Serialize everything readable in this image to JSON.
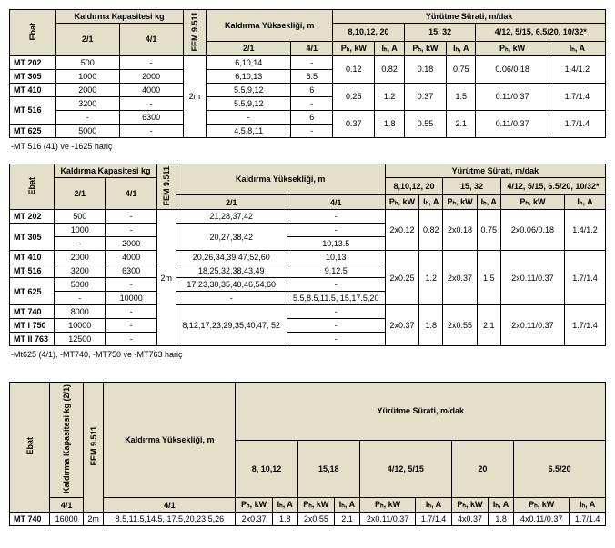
{
  "watermark": "",
  "headers": {
    "ebat": "Ebat",
    "kaldirma_kap": "Kaldırma\nKapasitesi kg",
    "fem": "FEM 9.511",
    "kaldirma_yuk": "Kaldırma Yüksekliği, m",
    "yurutme": "Yürütme Sürati, m/dak",
    "r21": "2/1",
    "r41": "4/1",
    "ph": "Pₕ, kW",
    "ih": "Iₕ, A",
    "sp1": "8,10,12, 20",
    "sp2": "15, 32",
    "sp3": "4/12, 5/15, 6.5/20, 10/32*",
    "sp4": "4/12, 5/15, 6.5/20, 10/32*",
    "t3_sp1": "8, 10,12",
    "t3_sp2": "15,18",
    "t3_sp3": "4/12, 5/15",
    "t3_sp4": "20",
    "t3_sp5": "6.5/20",
    "kaldirma_kap21": "Kaldırma Kapasitesi kg (2/1)"
  },
  "t1_footnote": "-MT 516 (41) ve -1625 hariç",
  "t2_footnote": "-Mt625 (4/1), -MT740, -MT750 ve -MT763 hariç",
  "fem_val": "2m",
  "t1": {
    "rows": [
      {
        "m": "MT 202",
        "c21": "500",
        "c41": "-",
        "h21": "6,10,14",
        "h41": "-"
      },
      {
        "m": "MT 305",
        "c21": "1000",
        "c41": "2000",
        "h21": "6,10,13",
        "h41": "6.5"
      },
      {
        "m": "MT 410",
        "c21": "2000",
        "c41": "4000",
        "h21": "5.5,9,12",
        "h41": "6"
      },
      {
        "m": "MT 516",
        "c21": "3200",
        "c41": "-",
        "h21": "5.5,9,12",
        "h41": "-"
      },
      {
        "m2": "",
        "c21": "-",
        "c41": "6300",
        "h21": "-",
        "h41": "6"
      },
      {
        "m": "MT 625",
        "c21": "5000",
        "c41": "-",
        "h21": "4.5,8,11",
        "h41": "-"
      }
    ],
    "g1": {
      "ph1": "0.12",
      "ih1": "0.82",
      "ph2": "0.18",
      "ih2": "0.75",
      "ph3": "0.06/0.18",
      "ih3": "1.4/1.2"
    },
    "g2": {
      "ph1": "0.25",
      "ih1": "1.2",
      "ph2": "0.37",
      "ih2": "1.5",
      "ph3": "0.11/0.37",
      "ih3": "1.7/1.4"
    },
    "g3": {
      "ph1": "0.37",
      "ih1": "1.8",
      "ph2": "0.55",
      "ih2": "2.1",
      "ph3": "0.11/0.37",
      "ih3": "1.7/1.4"
    }
  },
  "t2": {
    "rows": [
      {
        "m": "MT 202",
        "c21": "500",
        "c41": "-",
        "h21": "21,28,37,42",
        "h41": "-"
      },
      {
        "m": "MT 305",
        "c21": "1000",
        "c41": "-",
        "h21": "20,27,38,42",
        "h41": "-"
      },
      {
        "m2": "",
        "c21": "-",
        "c41": "2000",
        "h21": "",
        "h41": "10,13.5"
      },
      {
        "m": "MT 410",
        "c21": "2000",
        "c41": "4000",
        "h21": "20,26,34,39,47,52,60",
        "h41": "10,13"
      },
      {
        "m": "MT 516",
        "c21": "3200",
        "c41": "6300",
        "h21": "18,25,32,38,43,49",
        "h41": "9,12.5"
      },
      {
        "m": "MT 625",
        "c21": "5000",
        "c41": "-",
        "h21": "17,23,30,35,40,46,54,60",
        "h41": "-"
      },
      {
        "m2": "",
        "c21": "-",
        "c41": "10000",
        "h21": "-",
        "h41": "5.5,8.5,11.5, 15,17.5,20"
      },
      {
        "m": "MT 740",
        "c21": "8000",
        "c41": "-",
        "h21": "8,12,17,23,29,35,40,47, 52",
        "h41": "-"
      },
      {
        "m": "MT I 750",
        "c21": "10000",
        "c41": "-",
        "h21": "",
        "h41": "-"
      },
      {
        "m": "MT II 763",
        "c21": "12500",
        "c41": "-",
        "h21": "",
        "h41": "-"
      }
    ],
    "g1": {
      "ph1": "2x0.12",
      "ih1": "0.82",
      "ph2": "2x0.18",
      "ih2": "0.75",
      "ph3": "2x0.06/0.18",
      "ih3": "1.4/1.2"
    },
    "g2": {
      "ph1": "2x0.25",
      "ih1": "1.2",
      "ph2": "2x0.37",
      "ih2": "1.5",
      "ph3": "2x0.11/0.37",
      "ih3": "1.7/1.4"
    },
    "g3": {
      "ph1": "2x0.37",
      "ih1": "1.8",
      "ph2": "2x0.55",
      "ih2": "2.1",
      "ph3": "2x0.11/0.37",
      "ih3": "1.7/1.4"
    }
  },
  "t3": {
    "m": "MT 740",
    "c41": "16000",
    "fem": "2m",
    "h41": "8.5,11.5,14.5, 17.5,20,23.5,26",
    "v": {
      "ph1": "2x0.37",
      "ih1": "1.8",
      "ph2": "2x0.55",
      "ih2": "2.1",
      "ph3": "2x0.11/0.37",
      "ih3": "1.7/1.4",
      "ph4": "4x0.37",
      "ih4": "1.8",
      "ph5": "4x0.11/0.37",
      "ih5": "1.7/1.4"
    }
  },
  "colors": {
    "header_bg": "#e3dfc8",
    "border": "#000000",
    "text": "#000000",
    "watermark": "#f0f0f0"
  }
}
